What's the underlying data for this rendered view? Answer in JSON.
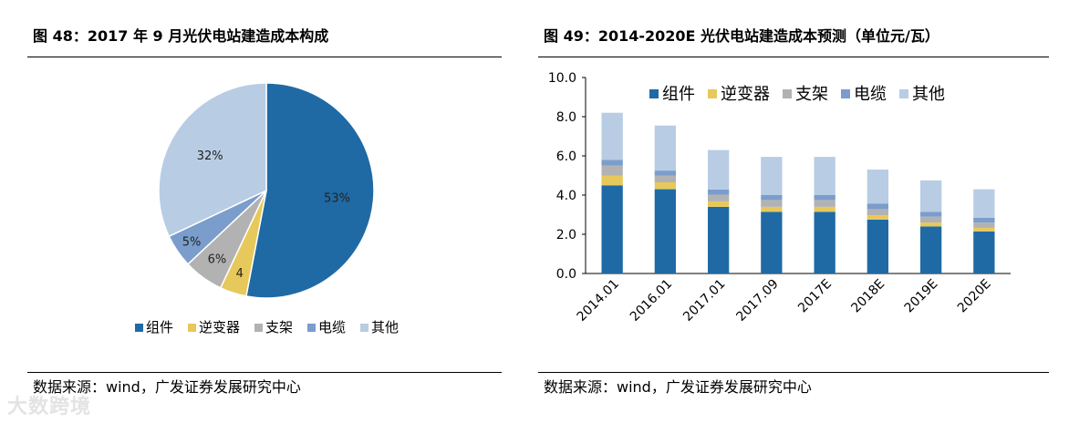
{
  "left": {
    "title": "图 48：2017 年 9 月光伏电站建造成本构成",
    "source": "数据来源：wind，广发证券发展研究中心"
  },
  "right": {
    "title": "图 49：2014-2020E 光伏电站建造成本预测（单位元/瓦）",
    "source": "数据来源：wind，广发证券发展研究中心"
  },
  "watermark": "大数跨境",
  "chart_data": [
    {
      "type": "pie",
      "title": "2017 年 9 月光伏电站建造成本构成",
      "categories": [
        "组件",
        "逆变器",
        "支架",
        "电缆",
        "其他"
      ],
      "values": [
        53,
        4,
        6,
        5,
        32
      ],
      "data_labels": [
        "53%",
        "4",
        "6%",
        "5%",
        "32%"
      ],
      "colors": [
        "#1f6aa5",
        "#e7c85a",
        "#b2b2b2",
        "#7a9dcc",
        "#b8cce4"
      ],
      "legend": "bottom"
    },
    {
      "type": "bar",
      "stacked": true,
      "title": "2014-2020E 光伏电站建造成本预测（单位元/瓦）",
      "categories": [
        "2014.01",
        "2016.01",
        "2017.01",
        "2017.09",
        "2017E",
        "2018E",
        "2019E",
        "2020E"
      ],
      "series": [
        {
          "name": "组件",
          "color": "#1f6aa5",
          "values": [
            4.5,
            4.3,
            3.4,
            3.15,
            3.15,
            2.75,
            2.4,
            2.15
          ]
        },
        {
          "name": "逆变器",
          "color": "#e7c85a",
          "values": [
            0.5,
            0.35,
            0.28,
            0.25,
            0.25,
            0.22,
            0.2,
            0.18
          ]
        },
        {
          "name": "支架",
          "color": "#b2b2b2",
          "values": [
            0.5,
            0.35,
            0.34,
            0.35,
            0.35,
            0.3,
            0.3,
            0.27
          ]
        },
        {
          "name": "电缆",
          "color": "#7a9dcc",
          "values": [
            0.3,
            0.25,
            0.27,
            0.25,
            0.25,
            0.3,
            0.25,
            0.25
          ]
        },
        {
          "name": "其他",
          "color": "#b8cce4",
          "values": [
            2.4,
            2.3,
            2.01,
            1.95,
            1.95,
            1.73,
            1.6,
            1.45
          ]
        }
      ],
      "y_ticks": [
        "0.0",
        "2.0",
        "4.0",
        "6.0",
        "8.0",
        "10.0"
      ],
      "ylim": [
        0,
        10
      ],
      "legend": "top"
    }
  ]
}
